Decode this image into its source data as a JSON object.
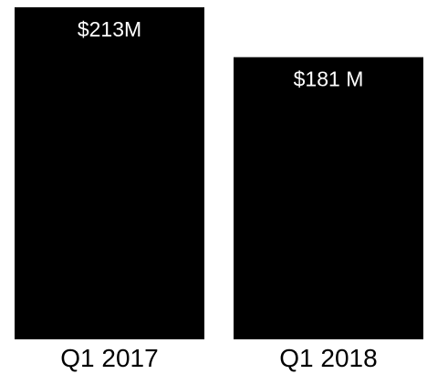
{
  "chart_data": {
    "type": "bar",
    "categories": [
      "Q1 2017",
      "Q1 2018"
    ],
    "values": [
      213,
      181
    ],
    "data_labels": [
      "$213M",
      "$181 M"
    ],
    "ylim": [
      0,
      213
    ],
    "grid": false,
    "bar_color": "#000000",
    "label_color": "#ffffff"
  }
}
